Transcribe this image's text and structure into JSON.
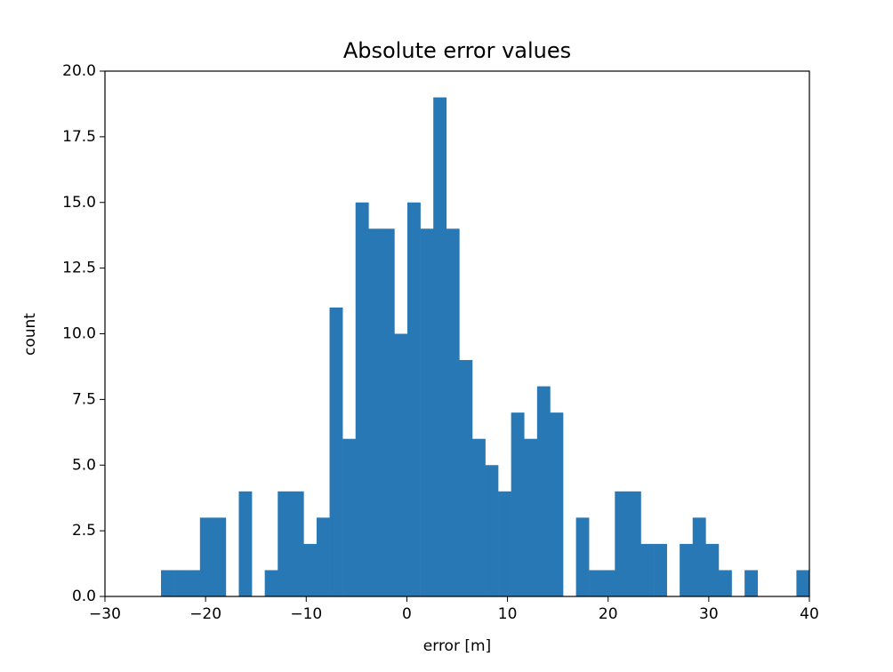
{
  "chart_data": {
    "type": "histogram",
    "title": "Absolute error values",
    "x_label": "error [m]",
    "y_label": "count",
    "bins": [
      -24.43,
      -23.14,
      -21.85,
      -20.56,
      -19.28,
      -17.99,
      -16.7,
      -15.41,
      -14.12,
      -12.83,
      -11.54,
      -10.26,
      -8.97,
      -7.68,
      -6.39,
      -5.1,
      -3.81,
      -2.52,
      -1.24,
      0.05,
      1.34,
      2.63,
      3.92,
      5.21,
      6.5,
      7.79,
      9.07,
      10.36,
      11.65,
      12.94,
      14.23,
      15.52,
      16.81,
      18.09,
      19.38,
      20.67,
      21.96,
      23.25,
      24.54,
      25.83,
      27.11,
      28.4,
      29.69,
      30.98,
      32.27,
      33.56,
      34.85,
      36.13,
      37.42,
      38.71,
      40.0
    ],
    "values": [
      1,
      1,
      1,
      3,
      3,
      0,
      4,
      0,
      1,
      4,
      4,
      2,
      3,
      11,
      6,
      15,
      14,
      14,
      10,
      15,
      14,
      19,
      14,
      9,
      6,
      5,
      4,
      7,
      6,
      8,
      7,
      0,
      3,
      1,
      1,
      4,
      4,
      2,
      2,
      0,
      2,
      3,
      2,
      1,
      0,
      1,
      0,
      0,
      0,
      1
    ],
    "color": "#2878b5",
    "xlim": [
      -30,
      40
    ],
    "xticks": [
      {
        "value": -30,
        "label": "−30"
      },
      {
        "value": -20,
        "label": "−20"
      },
      {
        "value": -10,
        "label": "−10"
      },
      0,
      10,
      20,
      30,
      40
    ],
    "ylim": [
      0,
      20
    ],
    "yticks": [
      {
        "value": 0,
        "label": "0.0"
      },
      {
        "value": 2.5,
        "label": "2.5"
      },
      {
        "value": 5,
        "label": "5.0"
      },
      {
        "value": 7.5,
        "label": "7.5"
      },
      {
        "value": 10,
        "label": "10.0"
      },
      {
        "value": 12.5,
        "label": "12.5"
      },
      {
        "value": 15,
        "label": "15.0"
      },
      {
        "value": 17.5,
        "label": "17.5"
      },
      {
        "value": 20,
        "label": "20.0"
      }
    ],
    "grid": false
  }
}
